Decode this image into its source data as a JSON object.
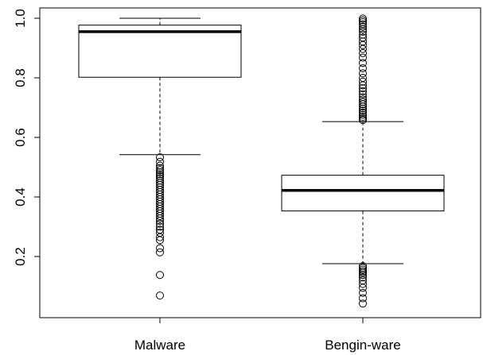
{
  "chart_data": {
    "type": "boxplot",
    "title": "",
    "xlabel": "",
    "ylabel": "",
    "ylim": [
      0.035,
      1.02
    ],
    "yticks": [
      0.2,
      0.4,
      0.6,
      0.8,
      1.0
    ],
    "ytick_labels": [
      "0.2",
      "0.4",
      "0.6",
      "0.8",
      "1.0"
    ],
    "categories": [
      "Malware",
      "Bengin-ware"
    ],
    "boxes": [
      {
        "category": "Malware",
        "whisker_low": 0.542,
        "q1": 0.802,
        "median": 0.955,
        "q3": 0.977,
        "whisker_high": 1.0,
        "outliers": [
          0.533,
          0.518,
          0.505,
          0.497,
          0.49,
          0.483,
          0.476,
          0.47,
          0.463,
          0.455,
          0.447,
          0.44,
          0.432,
          0.424,
          0.416,
          0.408,
          0.4,
          0.392,
          0.384,
          0.376,
          0.368,
          0.36,
          0.352,
          0.344,
          0.336,
          0.328,
          0.32,
          0.31,
          0.3,
          0.29,
          0.28,
          0.265,
          0.255,
          0.228,
          0.214,
          0.138,
          0.069
        ]
      },
      {
        "category": "Bengin-ware",
        "whisker_low": 0.176,
        "q1": 0.353,
        "median": 0.422,
        "q3": 0.473,
        "whisker_high": 0.653,
        "outliers": [
          0.999,
          0.993,
          0.987,
          0.98,
          0.972,
          0.963,
          0.955,
          0.945,
          0.935,
          0.922,
          0.91,
          0.897,
          0.883,
          0.868,
          0.85,
          0.832,
          0.815,
          0.8,
          0.787,
          0.775,
          0.765,
          0.755,
          0.745,
          0.735,
          0.727,
          0.719,
          0.711,
          0.704,
          0.697,
          0.69,
          0.683,
          0.676,
          0.669,
          0.663,
          0.658,
          0.168,
          0.162,
          0.156,
          0.15,
          0.145,
          0.138,
          0.13,
          0.12,
          0.108,
          0.095,
          0.078,
          0.06,
          0.042
        ]
      }
    ]
  }
}
